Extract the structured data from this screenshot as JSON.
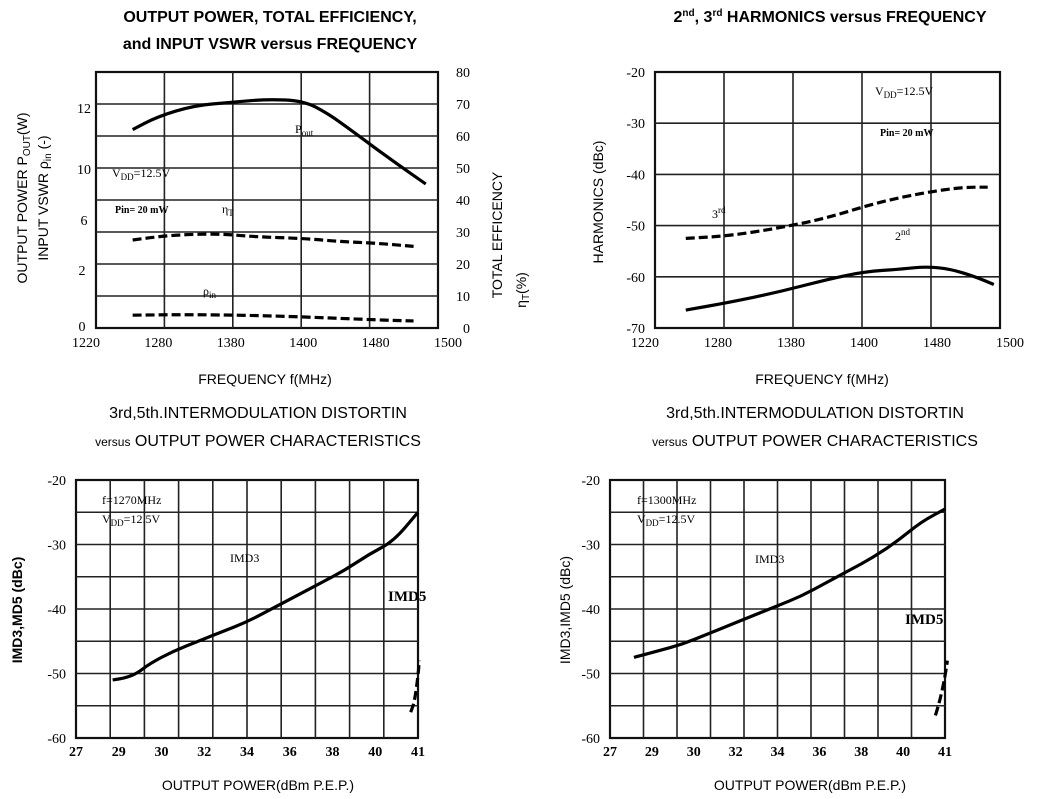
{
  "chart_data": [
    {
      "type": "line",
      "title": [
        "OUTPUT POWER, TOTAL EFFICIENCY,",
        "and INPUT VSWR versus FREQUENCY"
      ],
      "xlabel": "FREQUENCY f(MHz)",
      "ylabel": "OUTPUT POWER Pout(W)  INPUT VSWR ρin (-)",
      "y2label": "TOTAL EFFICENCY ηT(%)",
      "xlim": [
        1220,
        1500
      ],
      "ylim": [
        0,
        80
      ],
      "x_ticks": [
        "1220",
        "1280",
        "1380",
        "1400",
        "1480",
        "1500"
      ],
      "y_left_ticks": [
        "0",
        "2",
        "6",
        "10",
        "12"
      ],
      "y_right_ticks": [
        "0",
        "10",
        "20",
        "30",
        "40",
        "50",
        "60",
        "70",
        "80"
      ],
      "grid": true,
      "annotations": [
        "VDD=12.5V",
        "Pin= 20 mW"
      ],
      "series": [
        {
          "name": "Pout",
          "style": "solid",
          "x": [
            1250,
            1270,
            1300,
            1330,
            1360,
            1390,
            1410,
            1430,
            1460,
            1490
          ],
          "y": [
            62,
            66,
            69.5,
            70.5,
            71.5,
            71,
            67,
            61.5,
            53,
            45
          ]
        },
        {
          "name": "ηT",
          "style": "dashed",
          "x": [
            1250,
            1280,
            1320,
            1350,
            1390,
            1420,
            1450,
            1480
          ],
          "y": [
            27.5,
            29,
            29.5,
            28.5,
            28,
            27,
            26.5,
            25.5
          ]
        },
        {
          "name": "ρin",
          "style": "dashed",
          "x": [
            1250,
            1290,
            1340,
            1380,
            1420,
            1460,
            1480
          ],
          "y": [
            4,
            4.2,
            4,
            3.6,
            3,
            2.4,
            2.2
          ]
        }
      ]
    },
    {
      "type": "line",
      "title": [
        "2nd, 3rd HARMONICS versus FREQUENCY"
      ],
      "xlabel": "FREQUENCY f(MHz)",
      "ylabel": "HARMONICS (dBc)",
      "xlim": [
        1220,
        1500
      ],
      "ylim": [
        -70,
        -20
      ],
      "x_ticks": [
        "1220",
        "1280",
        "1380",
        "1400",
        "1480",
        "1500"
      ],
      "y_ticks": [
        "-20",
        "-30",
        "-40",
        "-50",
        "-60",
        "-70"
      ],
      "grid": true,
      "annotations": [
        "VDD=12.5V",
        "Pin= 20 mW"
      ],
      "series": [
        {
          "name": "3rd",
          "style": "dashed",
          "x": [
            1245,
            1280,
            1320,
            1360,
            1400,
            1440,
            1470,
            1490
          ],
          "y": [
            -52.5,
            -52,
            -50.5,
            -48.5,
            -45.5,
            -43.5,
            -42.5,
            -42.5
          ]
        },
        {
          "name": "2nd",
          "style": "solid",
          "x": [
            1245,
            1280,
            1320,
            1360,
            1390,
            1420,
            1440,
            1460,
            1480,
            1495
          ],
          "y": [
            -66.5,
            -65,
            -63,
            -60.5,
            -59,
            -58.5,
            -58,
            -58.5,
            -60,
            -61.5
          ]
        }
      ]
    },
    {
      "type": "line",
      "title": [
        "3rd,5th.INTERMODULATION DISTORTIN",
        "versus OUTPUT POWER CHARACTERISTICS"
      ],
      "xlabel": "OUTPUT POWER(dBm P.E.P.)",
      "ylabel": "IMD3,MD5 (dBc)",
      "xlim": [
        27,
        41
      ],
      "ylim": [
        -60,
        -20
      ],
      "x_ticks": [
        "27",
        "29",
        "30",
        "32",
        "34",
        "36",
        "38",
        "40",
        "41"
      ],
      "y_ticks": [
        "-20",
        "-30",
        "-40",
        "-50",
        "-60"
      ],
      "grid": true,
      "annotations": [
        "f=1270MHz",
        "VDD=12.5V"
      ],
      "series": [
        {
          "name": "IMD3",
          "style": "solid",
          "x": [
            28.5,
            29,
            29.5,
            30,
            31,
            32,
            33,
            34,
            35,
            36,
            37,
            38,
            39,
            40,
            41
          ],
          "y": [
            -51,
            -50.7,
            -50,
            -48.5,
            -46.5,
            -45,
            -43.5,
            -42,
            -40,
            -38,
            -36,
            -34,
            -31.5,
            -29.5,
            -25
          ]
        },
        {
          "name": "IMD5",
          "style": "dashed",
          "x": [
            40.7,
            40.85,
            41,
            41.05
          ],
          "y": [
            -56,
            -54.5,
            -50.5,
            -48
          ]
        }
      ]
    },
    {
      "type": "line",
      "title": [
        "3rd,5th.INTERMODULATION DISTORTIN",
        "versus OUTPUT POWER CHARACTERISTICS"
      ],
      "xlabel": "OUTPUT POWER(dBm P.E.P.)",
      "ylabel": "IMD3,IMD5 (dBc)",
      "xlim": [
        27,
        41
      ],
      "ylim": [
        -60,
        -20
      ],
      "x_ticks": [
        "27",
        "29",
        "30",
        "32",
        "34",
        "36",
        "38",
        "40",
        "41"
      ],
      "y_ticks": [
        "-20",
        "-30",
        "-40",
        "-50",
        "-60"
      ],
      "grid": true,
      "annotations": [
        "f=1300MHz",
        "VDD=12.5V"
      ],
      "series": [
        {
          "name": "IMD3",
          "style": "solid",
          "x": [
            28,
            29,
            30,
            31,
            32,
            33,
            34,
            35,
            36,
            37,
            38,
            39,
            40,
            41
          ],
          "y": [
            -47.5,
            -46.5,
            -45.5,
            -44,
            -42.5,
            -41,
            -39.5,
            -38,
            -36,
            -34,
            -32,
            -29.5,
            -26.5,
            -24.5
          ]
        },
        {
          "name": "IMD5",
          "style": "dashed",
          "x": [
            40.6,
            40.8,
            41,
            41.1
          ],
          "y": [
            -56.5,
            -54,
            -50.5,
            -48
          ]
        }
      ]
    }
  ]
}
